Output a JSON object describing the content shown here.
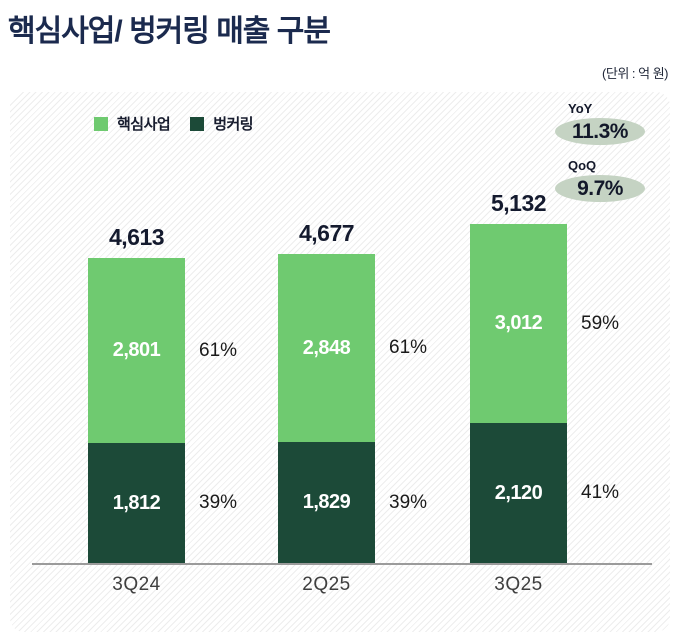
{
  "header": {
    "title": "핵심사업/ 벙커링 매출 구분",
    "unit_label": "(단위 : 억 원)"
  },
  "badges": {
    "yoy": {
      "label": "YoY",
      "value": "11.3%"
    },
    "qoq": {
      "label": "QoQ",
      "value": "9.7%"
    }
  },
  "colors": {
    "title_navy": "#1b2a4e",
    "core_business_green": "#6fca70",
    "bunkering_green": "#1c4a38",
    "badge_pill_sage": "#c5d3c3",
    "axis_line": "#9b9b9b"
  },
  "chart_data": {
    "type": "bar",
    "stacked": true,
    "title": "핵심사업/ 벙커링 매출 구분",
    "unit": "억 원",
    "grid": false,
    "legend_position": "top-left",
    "categories": [
      "3Q24",
      "2Q25",
      "3Q25"
    ],
    "series": [
      {
        "name": "핵심사업",
        "values": [
          2801,
          2848,
          3012
        ],
        "value_labels": [
          "2,801",
          "2,848",
          "3,012"
        ],
        "share_labels": [
          "61%",
          "61%",
          "59%"
        ],
        "color": "#6fca70"
      },
      {
        "name": "벙커링",
        "values": [
          1812,
          1829,
          2120
        ],
        "value_labels": [
          "1,812",
          "1,829",
          "2,120"
        ],
        "share_labels": [
          "39%",
          "39%",
          "41%"
        ],
        "color": "#1c4a38"
      }
    ],
    "totals": [
      4613,
      4677,
      5132
    ],
    "total_labels": [
      "4,613",
      "4,677",
      "5,132"
    ],
    "yoy_pct": 11.3,
    "qoq_pct": 9.7
  }
}
